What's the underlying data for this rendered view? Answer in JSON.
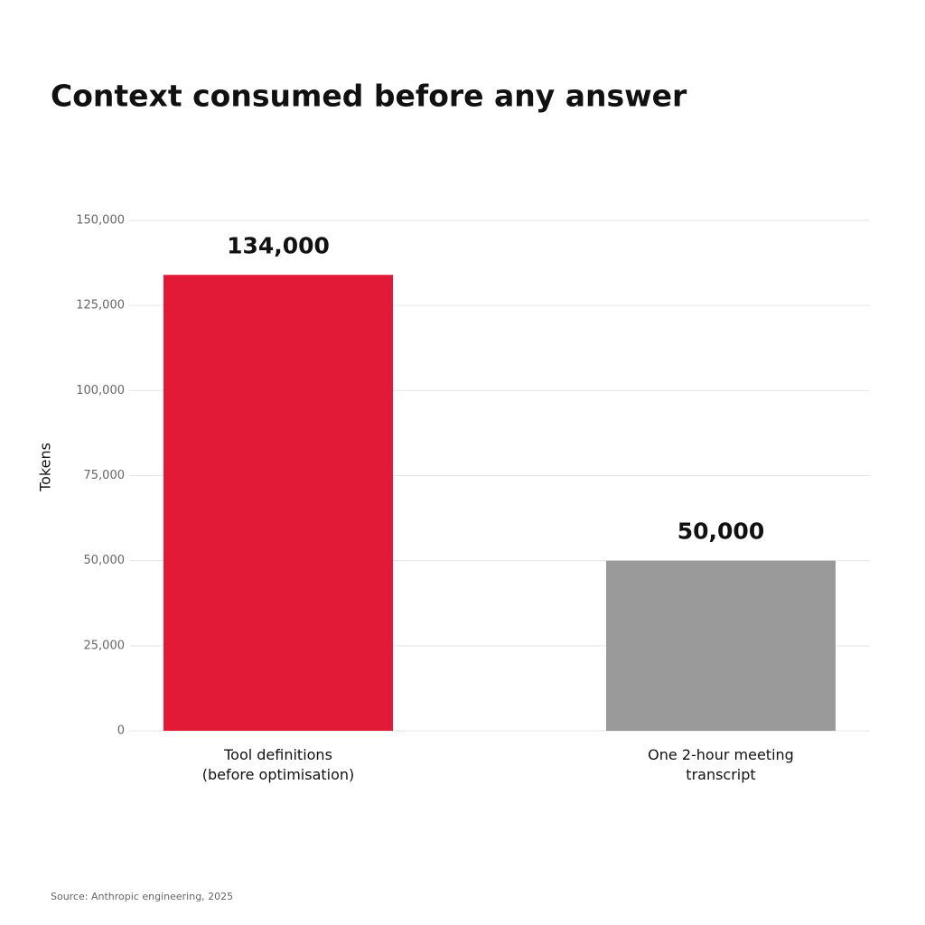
{
  "chart_data": {
    "type": "bar",
    "title": "Context consumed before any answer",
    "ylabel": "Tokens",
    "categories": [
      "Tool definitions\n(before optimisation)",
      "One 2-hour meeting\ntranscript"
    ],
    "values": [
      134000,
      50000
    ],
    "value_labels": [
      "134,000",
      "50,000"
    ],
    "colors": [
      "#e31a37",
      "#9a9a9a"
    ],
    "ylim": [
      0,
      150000
    ],
    "yticks": [
      0,
      {
        "value": 25000,
        "label": "25,000"
      },
      {
        "value": 50000,
        "label": "50,000"
      },
      {
        "value": 75000,
        "label": "75,000"
      },
      {
        "value": 100000,
        "label": "100,000"
      },
      {
        "value": 125000,
        "label": "125,000"
      },
      {
        "value": 150000,
        "label": "150,000"
      }
    ],
    "grid": true,
    "source": "Source: Anthropic engineering, 2025"
  }
}
